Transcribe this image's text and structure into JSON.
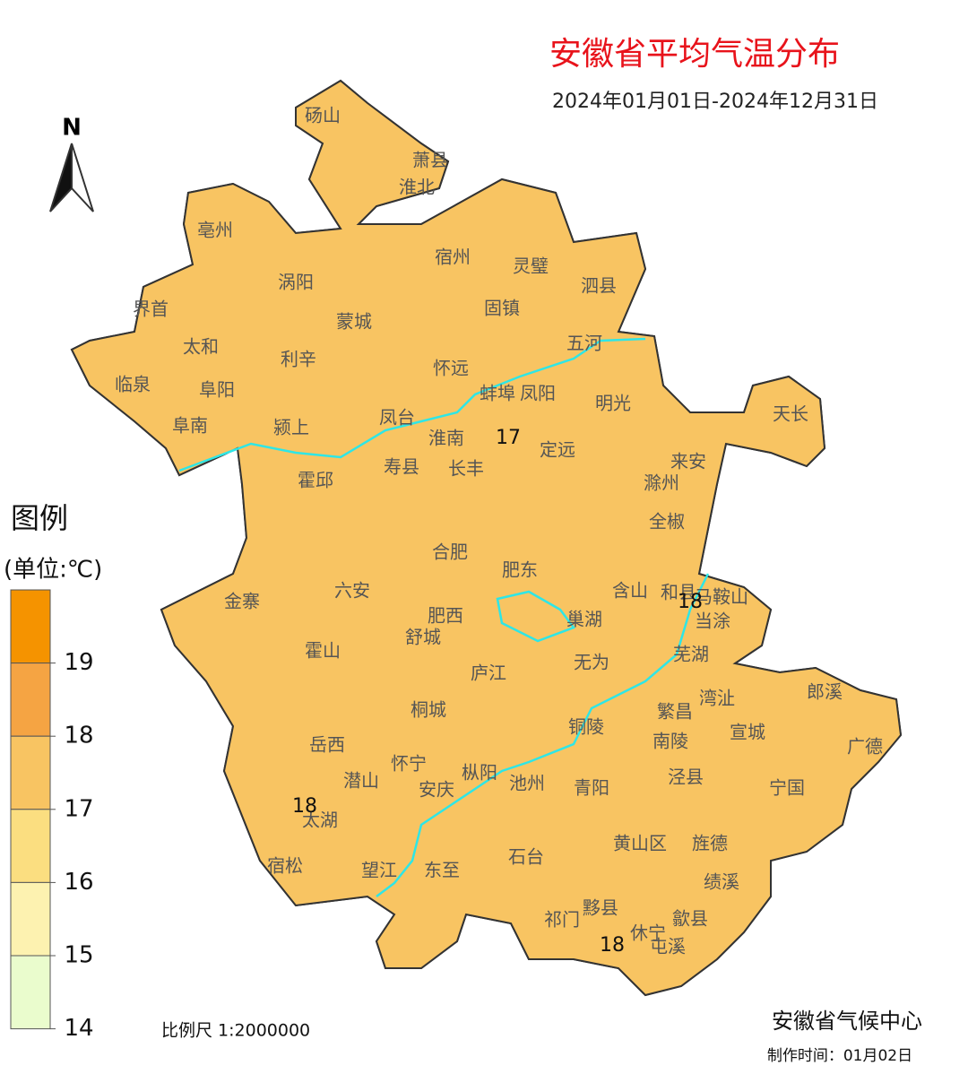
{
  "title": "安徽省平均气温分布",
  "subtitle": "2024年01月01日-2024年12月31日",
  "north": "N",
  "legend": {
    "title": "图例",
    "unit": "(单位:℃)",
    "ticks": [
      19,
      18,
      17,
      16,
      15,
      14
    ],
    "colors": [
      "#f59300",
      "#f5a443",
      "#f8c462",
      "#fbde80",
      "#fdf2b0",
      "#eafccd"
    ]
  },
  "counties": [
    "砀山",
    "萧县",
    "淮北",
    "亳州",
    "涡阳",
    "宿州",
    "灵璧",
    "泗县",
    "界首",
    "蒙城",
    "固镇",
    "太和",
    "利辛",
    "怀远",
    "五河",
    "临泉",
    "阜阳",
    "蚌埠",
    "凤阳",
    "明光",
    "天长",
    "阜南",
    "颍上",
    "凤台",
    "淮南",
    "定远",
    "来安",
    "寿县",
    "长丰",
    "滁州",
    "霍邱",
    "全椒",
    "合肥",
    "肥东",
    "六安",
    "金寨",
    "含山",
    "和县",
    "马鞍山",
    "当涂",
    "巢湖",
    "肥西",
    "舒城",
    "霍山",
    "芜湖",
    "无为",
    "庐江",
    "湾沚",
    "郎溪",
    "繁昌",
    "桐城",
    "铜陵",
    "宣城",
    "广德",
    "岳西",
    "南陵",
    "泾县",
    "潜山",
    "怀宁",
    "枞阳",
    "安庆",
    "池州",
    "青阳",
    "宁国",
    "太湖",
    "黄山区",
    "旌德",
    "宿松",
    "望江",
    "东至",
    "石台",
    "绩溪",
    "黟县",
    "祁门",
    "歙县",
    "休宁",
    "屯溪"
  ],
  "contour_labels": [
    17,
    18,
    18,
    18
  ],
  "scale": "比例尺 1:2000000",
  "organization": "安徽省气候中心",
  "made_time": "制作时间：01月02日"
}
